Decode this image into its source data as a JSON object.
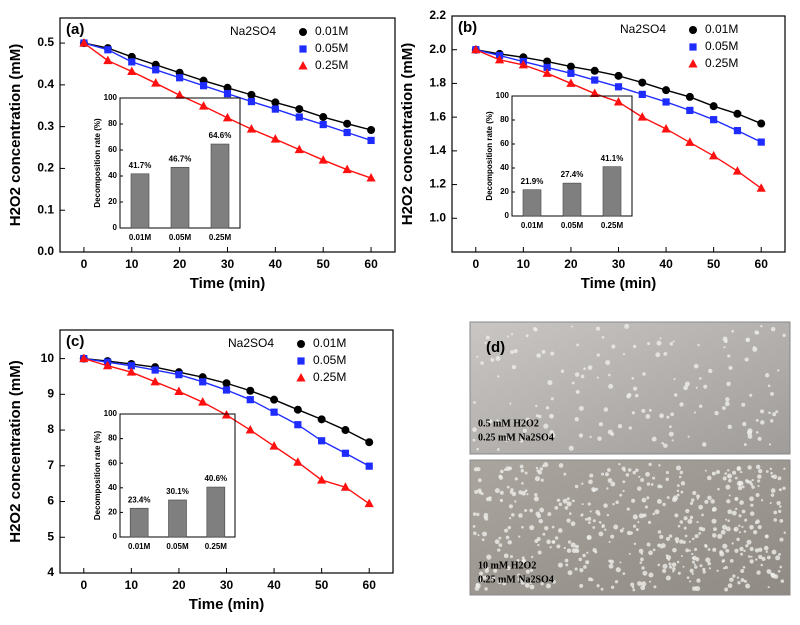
{
  "chart_data": [
    {
      "type": "line",
      "panel_label": "(a)",
      "legend_title": "Na2SO4",
      "xlabel": "Time (min)",
      "ylabel": "H2O2 concentration (mM)",
      "x": [
        0,
        5,
        10,
        15,
        20,
        25,
        30,
        35,
        40,
        45,
        50,
        55,
        60
      ],
      "xlim": [
        -5,
        65
      ],
      "xticks": [
        0,
        10,
        20,
        30,
        40,
        50,
        60
      ],
      "ylim": [
        0,
        0.56
      ],
      "yticks": [
        {
          "value": 0,
          "label": "0.0"
        },
        0.1,
        0.2,
        0.3,
        0.4,
        0.5
      ],
      "series": [
        {
          "name": "0.01M",
          "color": "#000000",
          "marker": "circle",
          "values": [
            0.5,
            0.488,
            0.467,
            0.448,
            0.429,
            0.41,
            0.393,
            0.376,
            0.358,
            0.342,
            0.323,
            0.307,
            0.292
          ]
        },
        {
          "name": "0.05M",
          "color": "#1f2cff",
          "marker": "square",
          "values": [
            0.5,
            0.484,
            0.455,
            0.436,
            0.417,
            0.398,
            0.379,
            0.36,
            0.342,
            0.323,
            0.305,
            0.286,
            0.267
          ]
        },
        {
          "name": "0.25M",
          "color": "#ff1010",
          "marker": "triangle",
          "values": [
            0.5,
            0.458,
            0.432,
            0.404,
            0.375,
            0.349,
            0.321,
            0.294,
            0.27,
            0.245,
            0.22,
            0.197,
            0.177
          ]
        }
      ],
      "inset": {
        "type": "bar",
        "ylabel": "Decomposition rate (%)",
        "categories": [
          "0.01M",
          "0.05M",
          "0.25M"
        ],
        "values": [
          41.7,
          46.7,
          64.6
        ],
        "value_labels": [
          "41.7%",
          "46.7%",
          "64.6%"
        ],
        "color": "#7f7f7f",
        "ylim": [
          0,
          100
        ],
        "yticks": [
          0,
          20,
          40,
          60,
          80,
          100
        ]
      }
    },
    {
      "type": "line",
      "panel_label": "(b)",
      "legend_title": "Na2SO4",
      "xlabel": "Time (min)",
      "ylabel": "H2O2 concentration (mM)",
      "x": [
        0,
        5,
        10,
        15,
        20,
        25,
        30,
        35,
        40,
        45,
        50,
        55,
        60
      ],
      "xlim": [
        -5,
        65
      ],
      "xticks": [
        0,
        10,
        20,
        30,
        40,
        50,
        60
      ],
      "ylim": [
        0.8,
        2.2
      ],
      "yticks": [
        {
          "value": 1,
          "label": "1.0"
        },
        1.2,
        1.4,
        1.6,
        1.8,
        {
          "value": 2,
          "label": "2.0"
        },
        2.2
      ],
      "series": [
        {
          "name": "0.01M",
          "color": "#000000",
          "marker": "circle",
          "values": [
            2.0,
            1.975,
            1.955,
            1.93,
            1.9,
            1.875,
            1.845,
            1.805,
            1.76,
            1.72,
            1.665,
            1.62,
            1.562
          ]
        },
        {
          "name": "0.05M",
          "color": "#1f2cff",
          "marker": "square",
          "values": [
            2.0,
            1.965,
            1.93,
            1.895,
            1.86,
            1.82,
            1.78,
            1.735,
            1.69,
            1.64,
            1.585,
            1.52,
            1.452
          ]
        },
        {
          "name": "0.25M",
          "color": "#ff1010",
          "marker": "triangle",
          "values": [
            2.0,
            1.94,
            1.91,
            1.86,
            1.8,
            1.74,
            1.69,
            1.6,
            1.53,
            1.45,
            1.37,
            1.28,
            1.178
          ]
        }
      ],
      "inset": {
        "type": "bar",
        "ylabel": "Decomposition rate (%)",
        "categories": [
          "0.01M",
          "0.05M",
          "0.25M"
        ],
        "values": [
          21.9,
          27.4,
          41.1
        ],
        "value_labels": [
          "21.9%",
          "27.4%",
          "41.1%"
        ],
        "color": "#7f7f7f",
        "ylim": [
          0,
          100
        ],
        "yticks": [
          0,
          20,
          40,
          60,
          80,
          100
        ]
      }
    },
    {
      "type": "line",
      "panel_label": "(c)",
      "legend_title": "Na2SO4",
      "xlabel": "Time (min)",
      "ylabel": "H2O2 concentration (mM)",
      "x": [
        0,
        5,
        10,
        15,
        20,
        25,
        30,
        35,
        40,
        45,
        50,
        55,
        60
      ],
      "xlim": [
        -5,
        65
      ],
      "xticks": [
        0,
        10,
        20,
        30,
        40,
        50,
        60
      ],
      "ylim": [
        4,
        10.8
      ],
      "yticks": [
        4,
        5,
        6,
        7,
        8,
        9,
        10
      ],
      "series": [
        {
          "name": "0.01M",
          "color": "#000000",
          "marker": "circle",
          "values": [
            10,
            9.93,
            9.85,
            9.76,
            9.62,
            9.48,
            9.31,
            9.1,
            8.85,
            8.57,
            8.3,
            8.0,
            7.66
          ]
        },
        {
          "name": "0.05M",
          "color": "#1f2cff",
          "marker": "square",
          "values": [
            10,
            9.9,
            9.8,
            9.68,
            9.55,
            9.35,
            9.12,
            8.85,
            8.5,
            8.15,
            7.7,
            7.35,
            6.99
          ]
        },
        {
          "name": "0.25M",
          "color": "#ff1010",
          "marker": "triangle",
          "values": [
            10,
            9.8,
            9.62,
            9.35,
            9.08,
            8.78,
            8.42,
            8.0,
            7.55,
            7.1,
            6.6,
            6.4,
            5.94
          ]
        }
      ],
      "inset": {
        "type": "bar",
        "ylabel": "Decomposition rate (%)",
        "categories": [
          "0.01M",
          "0.05M",
          "0.25M"
        ],
        "values": [
          23.4,
          30.1,
          40.6
        ],
        "value_labels": [
          "23.4%",
          "30.1%",
          "40.6%"
        ],
        "color": "#7f7f7f",
        "ylim": [
          0,
          100
        ],
        "yticks": [
          0,
          20,
          40,
          60,
          80,
          100
        ]
      }
    }
  ],
  "photo_panel": {
    "label": "(d)",
    "photos": [
      {
        "lines": [
          "0.5 mM H2O2",
          "0.25 mM Na2SO4"
        ]
      },
      {
        "lines": [
          "10 mM H2O2",
          "0.25 mM Na2SO4"
        ]
      }
    ]
  }
}
